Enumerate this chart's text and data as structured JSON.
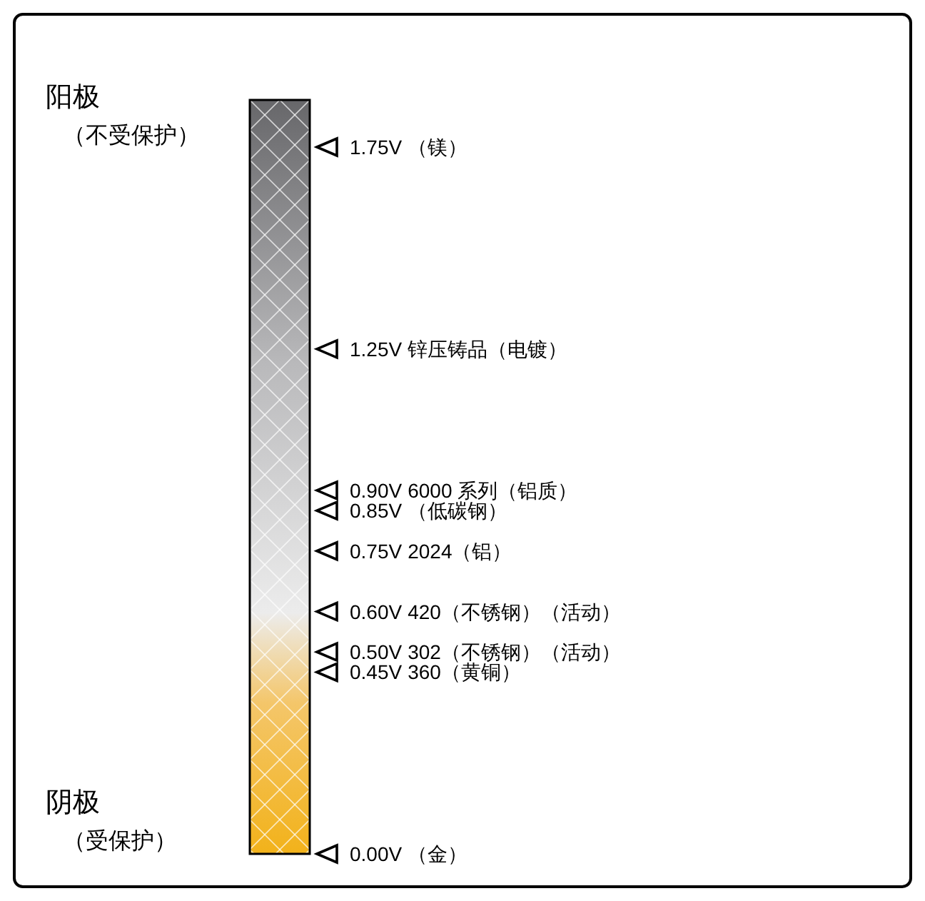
{
  "chart_data": {
    "type": "other",
    "categories": [
      "（镁）",
      "锌压铸品（电镀）",
      "6000 系列（铝质）",
      "（低碳钢）",
      "2024（铝）",
      "420（不锈钢）（活动）",
      "302（不锈钢）（活动）",
      "360（黄铜）",
      "（金）"
    ],
    "values": [
      1.75,
      1.25,
      0.9,
      0.85,
      0.75,
      0.6,
      0.5,
      0.45,
      0.0
    ],
    "value_labels": [
      "1.75V",
      "1.25V",
      "0.90V",
      "0.85V",
      "0.75V",
      "0.60V",
      "0.50V",
      "0.45V",
      "0.00V"
    ],
    "annotations": [
      "阳极",
      "（不受保护）",
      "阴极",
      "（受保护）"
    ]
  }
}
